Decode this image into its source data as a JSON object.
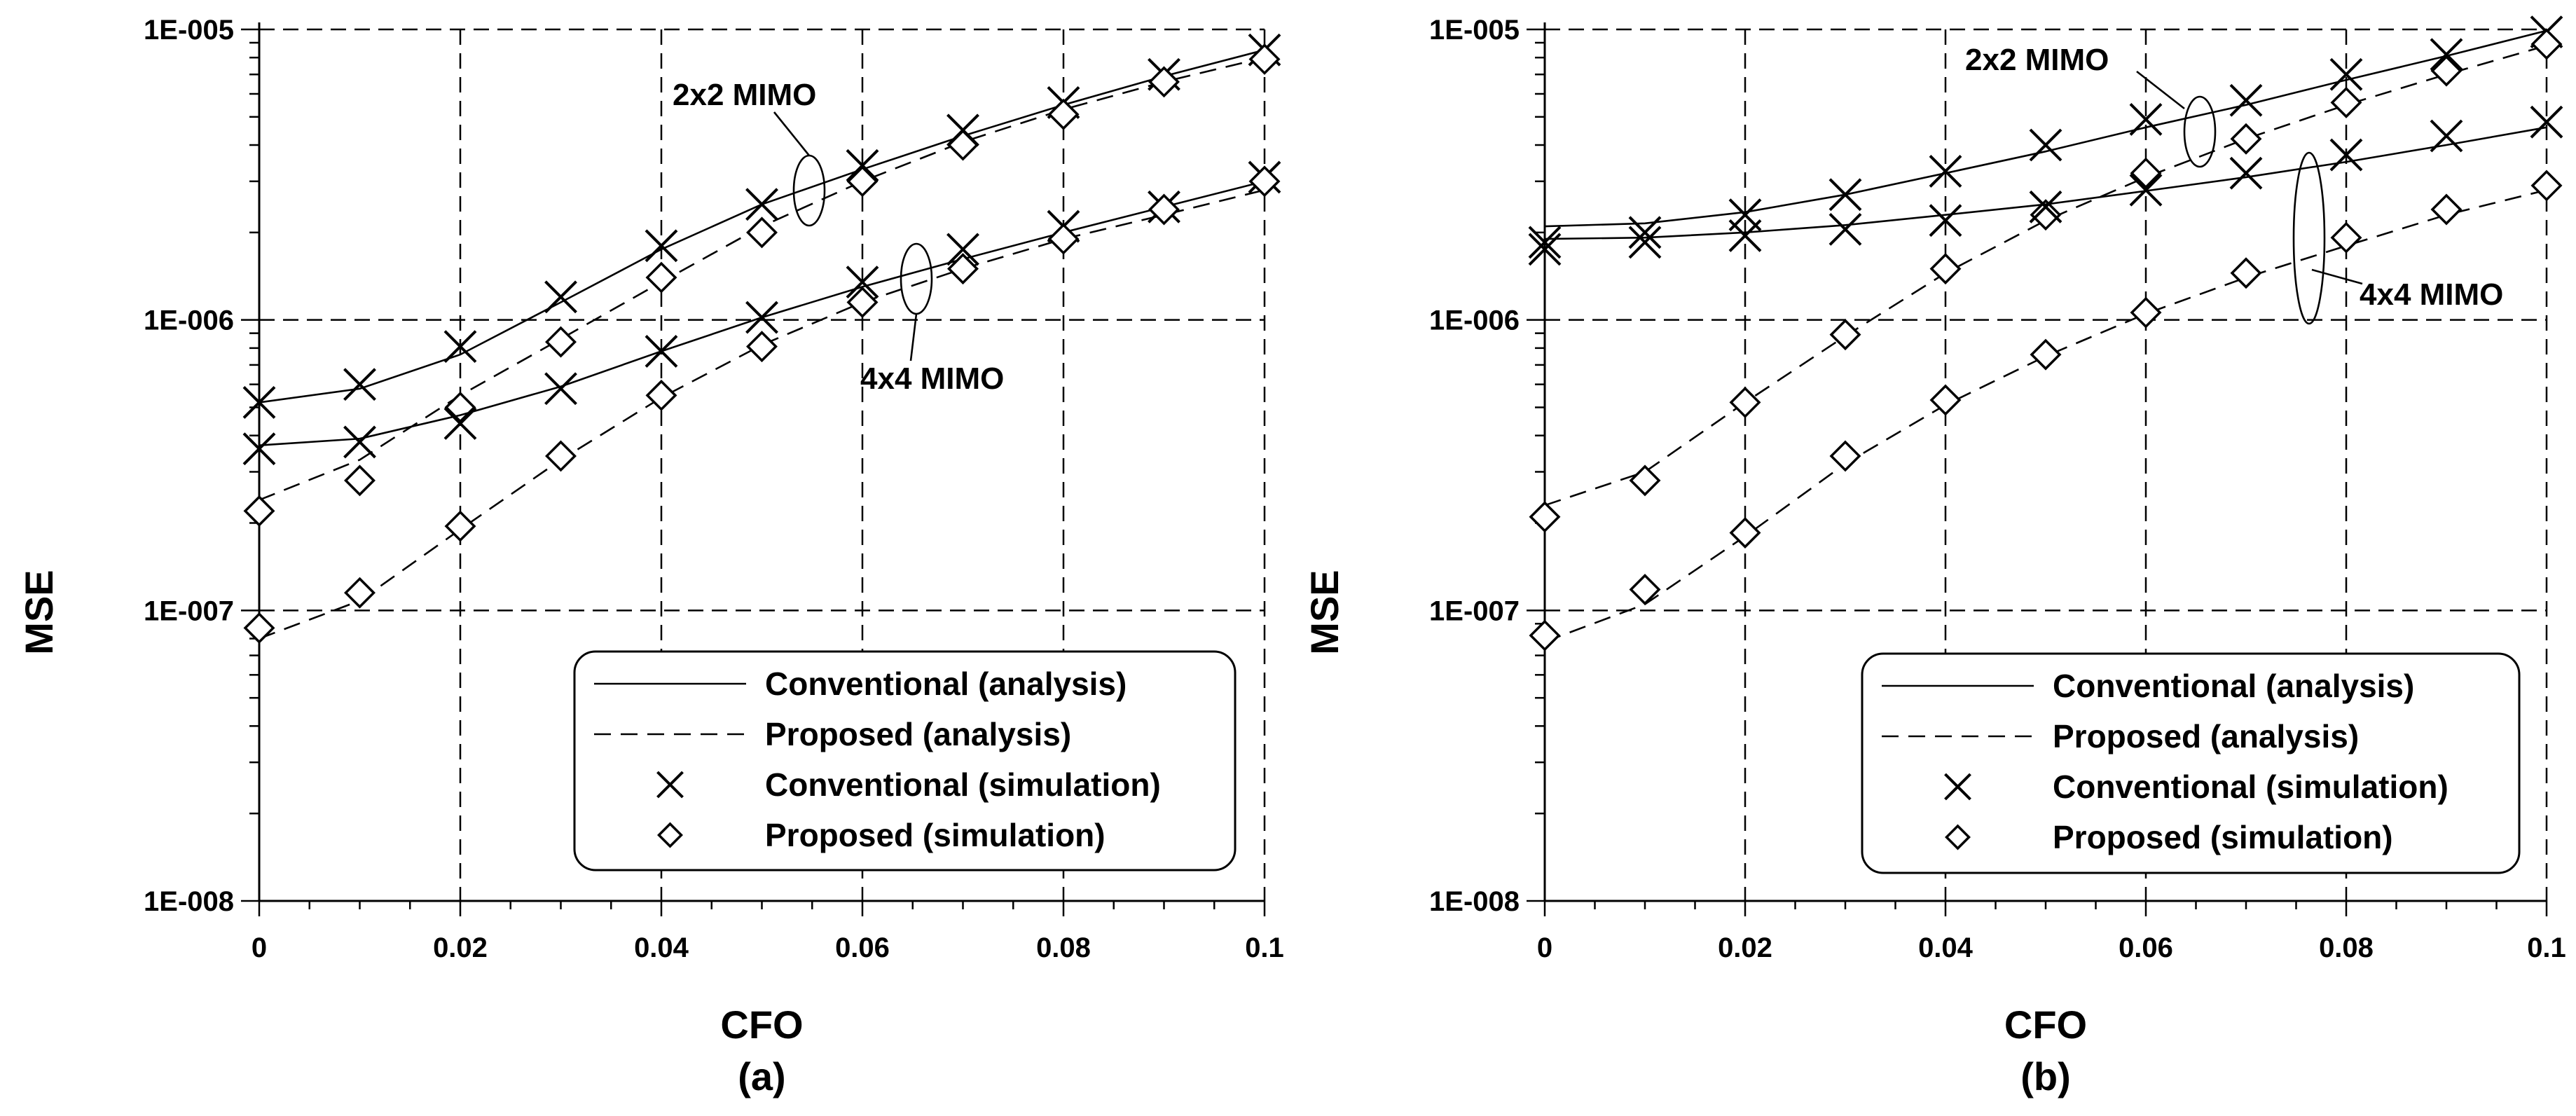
{
  "chart_data": [
    {
      "id": "a",
      "type": "line",
      "subtitle": "(a)",
      "xlabel": "CFO",
      "ylabel": "MSE",
      "yscale": "log",
      "xlim": [
        0,
        0.1
      ],
      "ylim": [
        1e-08,
        1e-05
      ],
      "xticks": [
        0,
        0.02,
        0.04,
        0.06,
        0.08,
        0.1
      ],
      "xtick_labels": [
        "0",
        "0.02",
        "0.04",
        "0.06",
        "0.08",
        "0.1"
      ],
      "yticks": [
        1e-08,
        1e-07,
        1e-06,
        1e-05
      ],
      "ytick_labels": [
        "1E-008",
        "1E-007",
        "1E-006",
        "1E-005"
      ],
      "grid": true,
      "legend": {
        "position": "bottom-right",
        "entries": [
          {
            "label": "Conventional (analysis)",
            "style": "solid"
          },
          {
            "label": "Proposed (analysis)",
            "style": "dashed"
          },
          {
            "label": "Conventional (simulation)",
            "style": "x-marker"
          },
          {
            "label": "Proposed (simulation)",
            "style": "diamond-marker"
          }
        ]
      },
      "annotations": [
        {
          "text": "2x2 MIMO",
          "at_x": 0.055,
          "at_y": 2.8e-06
        },
        {
          "text": "4x4 MIMO",
          "at_x": 0.066,
          "at_y": 1.4e-06
        }
      ],
      "x": [
        0,
        0.01,
        0.02,
        0.03,
        0.04,
        0.05,
        0.06,
        0.07,
        0.08,
        0.09,
        0.1
      ],
      "series": [
        {
          "name": "2x2 Conventional (analysis)",
          "style": "solid",
          "values": [
            5.2e-07,
            5.8e-07,
            7.6e-07,
            1.15e-06,
            1.75e-06,
            2.5e-06,
            3.3e-06,
            4.3e-06,
            5.5e-06,
            6.9e-06,
            8.5e-06
          ]
        },
        {
          "name": "2x2 Proposed (analysis)",
          "style": "dashed",
          "values": [
            2.4e-07,
            3.3e-07,
            5.5e-07,
            8.6e-07,
            1.35e-06,
            2.1e-06,
            3e-06,
            4.1e-06,
            5.3e-06,
            6.6e-06,
            8e-06
          ]
        },
        {
          "name": "2x2 Conventional (simulation)",
          "style": "x-marker",
          "values": [
            5.2e-07,
            6e-07,
            8.1e-07,
            1.2e-06,
            1.8e-06,
            2.5e-06,
            3.4e-06,
            4.5e-06,
            5.6e-06,
            7e-06,
            8.5e-06
          ]
        },
        {
          "name": "2x2 Proposed (simulation)",
          "style": "diamond-marker",
          "values": [
            2.2e-07,
            2.8e-07,
            5e-07,
            8.4e-07,
            1.4e-06,
            2e-06,
            3e-06,
            4e-06,
            5.1e-06,
            6.6e-06,
            7.9e-06
          ]
        },
        {
          "name": "4x4 Conventional (analysis)",
          "style": "solid",
          "values": [
            3.7e-07,
            3.9e-07,
            4.7e-07,
            5.9e-07,
            7.8e-07,
            1.02e-06,
            1.3e-06,
            1.62e-06,
            2e-06,
            2.45e-06,
            3e-06
          ]
        },
        {
          "name": "4x4 Proposed (analysis)",
          "style": "dashed",
          "values": [
            8e-08,
            1.08e-07,
            1.9e-07,
            3.3e-07,
            5.4e-07,
            8.2e-07,
            1.15e-06,
            1.5e-06,
            1.9e-06,
            2.3e-06,
            2.8e-06
          ]
        },
        {
          "name": "4x4 Conventional (simulation)",
          "style": "x-marker",
          "values": [
            3.6e-07,
            3.8e-07,
            4.4e-07,
            5.8e-07,
            7.8e-07,
            1.02e-06,
            1.35e-06,
            1.75e-06,
            2.1e-06,
            2.45e-06,
            3.1e-06
          ]
        },
        {
          "name": "4x4 Proposed (simulation)",
          "style": "diamond-marker",
          "values": [
            8.7e-08,
            1.15e-07,
            1.95e-07,
            3.4e-07,
            5.5e-07,
            8.1e-07,
            1.15e-06,
            1.5e-06,
            1.9e-06,
            2.4e-06,
            3e-06
          ]
        }
      ]
    },
    {
      "id": "b",
      "type": "line",
      "subtitle": "(b)",
      "xlabel": "CFO",
      "ylabel": "MSE",
      "yscale": "log",
      "xlim": [
        0,
        0.1
      ],
      "ylim": [
        1e-08,
        1e-05
      ],
      "xticks": [
        0,
        0.02,
        0.04,
        0.06,
        0.08,
        0.1
      ],
      "xtick_labels": [
        "0",
        "0.02",
        "0.04",
        "0.06",
        "0.08",
        "0.1"
      ],
      "yticks": [
        1e-08,
        1e-07,
        1e-06,
        1e-05
      ],
      "ytick_labels": [
        "1E-008",
        "1E-007",
        "1E-006",
        "1E-005"
      ],
      "grid": true,
      "legend": {
        "position": "bottom-right",
        "entries": [
          {
            "label": "Conventional (analysis)",
            "style": "solid"
          },
          {
            "label": "Proposed (analysis)",
            "style": "dashed"
          },
          {
            "label": "Conventional (simulation)",
            "style": "x-marker"
          },
          {
            "label": "Proposed (simulation)",
            "style": "diamond-marker"
          }
        ]
      },
      "annotations": [
        {
          "text": "2x2 MIMO",
          "at_x": 0.0655,
          "at_y": 4.5e-06
        },
        {
          "text": "4x4 MIMO",
          "at_x": 0.076,
          "at_y": 2.2e-06
        }
      ],
      "x": [
        0,
        0.01,
        0.02,
        0.03,
        0.04,
        0.05,
        0.06,
        0.07,
        0.08,
        0.09,
        0.1
      ],
      "series": [
        {
          "name": "2x2 Conventional (analysis)",
          "style": "solid",
          "values": [
            2.1e-06,
            2.15e-06,
            2.35e-06,
            2.7e-06,
            3.2e-06,
            3.8e-06,
            4.6e-06,
            5.5e-06,
            6.7e-06,
            8.1e-06,
            9.9e-06
          ]
        },
        {
          "name": "2x2 Proposed (analysis)",
          "style": "dashed",
          "values": [
            2.3e-07,
            3e-07,
            5.2e-07,
            8.8e-07,
            1.45e-06,
            2.2e-06,
            3.1e-06,
            4.2e-06,
            5.5e-06,
            7e-06,
            8.8e-06
          ]
        },
        {
          "name": "2x2 Conventional (simulation)",
          "style": "x-marker",
          "values": [
            1.85e-06,
            2e-06,
            2.3e-06,
            2.7e-06,
            3.25e-06,
            4e-06,
            4.9e-06,
            5.7e-06,
            7e-06,
            8.2e-06,
            9.8e-06
          ]
        },
        {
          "name": "2x2 Proposed (simulation)",
          "style": "diamond-marker",
          "values": [
            2.1e-07,
            2.8e-07,
            5.2e-07,
            8.9e-07,
            1.5e-06,
            2.3e-06,
            3.2e-06,
            4.2e-06,
            5.6e-06,
            7.2e-06,
            8.9e-06
          ]
        },
        {
          "name": "4x4 Conventional (analysis)",
          "style": "solid",
          "values": [
            1.9e-06,
            1.92e-06,
            2e-06,
            2.12e-06,
            2.3e-06,
            2.5e-06,
            2.78e-06,
            3.1e-06,
            3.5e-06,
            4e-06,
            4.6e-06
          ]
        },
        {
          "name": "4x4 Proposed (analysis)",
          "style": "dashed",
          "values": [
            7.8e-08,
            1.05e-07,
            1.8e-07,
            3.2e-07,
            5.1e-07,
            7.5e-07,
            1.05e-06,
            1.4e-06,
            1.8e-06,
            2.3e-06,
            2.8e-06
          ]
        },
        {
          "name": "4x4 Conventional (simulation)",
          "style": "x-marker",
          "values": [
            1.75e-06,
            1.85e-06,
            1.95e-06,
            2.05e-06,
            2.2e-06,
            2.45e-06,
            2.8e-06,
            3.2e-06,
            3.7e-06,
            4.3e-06,
            4.8e-06
          ]
        },
        {
          "name": "4x4 Proposed (simulation)",
          "style": "diamond-marker",
          "values": [
            8.2e-08,
            1.18e-07,
            1.85e-07,
            3.4e-07,
            5.3e-07,
            7.6e-07,
            1.06e-06,
            1.45e-06,
            1.92e-06,
            2.4e-06,
            2.9e-06
          ]
        }
      ]
    }
  ]
}
